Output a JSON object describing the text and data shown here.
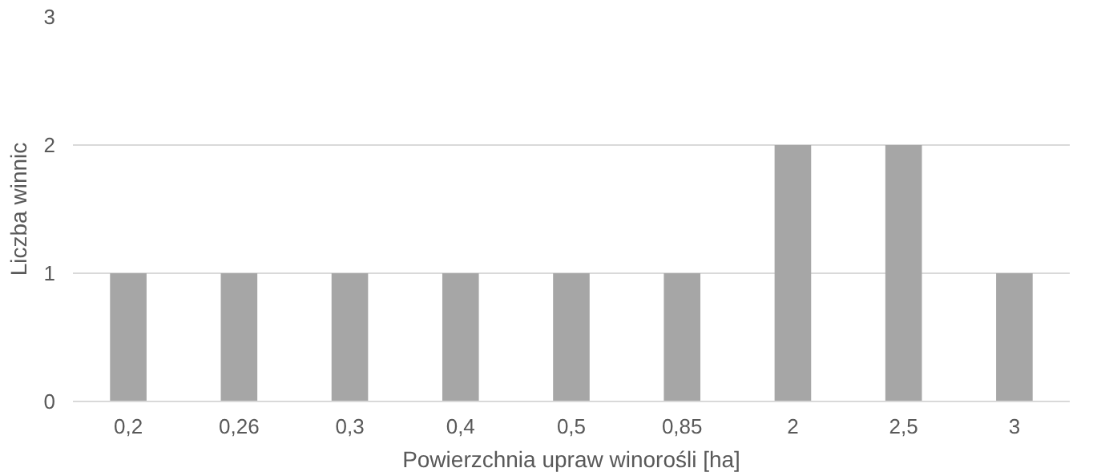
{
  "chart_data": {
    "type": "bar",
    "xlabel": "Powierzchnia upraw winorośli [ha]",
    "ylabel": "Liczba winnic",
    "categories": [
      "0,2",
      "0,26",
      "0,3",
      "0,4",
      "0,5",
      "0,85",
      "2",
      "2,5",
      "3"
    ],
    "values": [
      1,
      1,
      1,
      1,
      1,
      1,
      2,
      2,
      1
    ],
    "color": "#a6a6a6",
    "ylim": [
      0,
      3
    ],
    "yticks": [
      0,
      1,
      2,
      3
    ],
    "grid": "y"
  }
}
